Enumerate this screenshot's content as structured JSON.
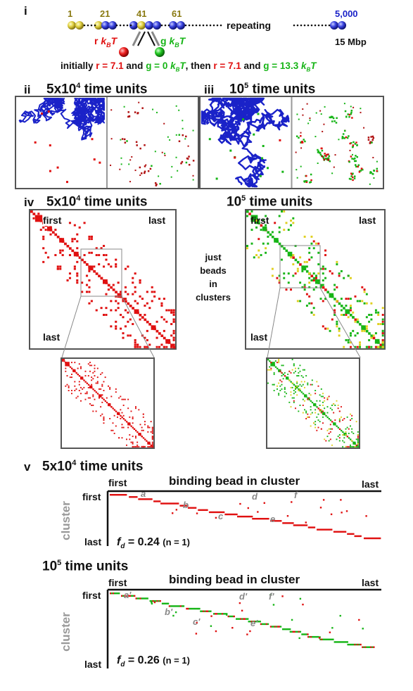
{
  "panel_i": {
    "label": "i",
    "bead_numbers": [
      "1",
      "21",
      "41",
      "61"
    ],
    "last_bead": "5,000",
    "repeating": "repeating",
    "mbp": "15 Mbp",
    "r_label": "r",
    "g_label": "g",
    "kbt": "k",
    "kbt_sub": "B",
    "kbt_T": "T",
    "init_prefix": "initially ",
    "init_r": "r = 7.1",
    "init_and": " and ",
    "init_g": "g = 0 ",
    "init_then": ", then ",
    "init_r2": "r = 7.1",
    "init_and2": " and ",
    "init_g2": "g = 13.3 "
  },
  "panel_ii": {
    "label": "ii",
    "title_a": "5x10",
    "title_sup": "4",
    "title_b": " time units"
  },
  "panel_iii": {
    "label": "iii",
    "title_a": "10",
    "title_sup": "5",
    "title_b": " time units"
  },
  "panel_iv": {
    "label": "iv",
    "left_title_a": "5x10",
    "left_title_sup": "4",
    "left_title_b": " time units",
    "right_title_a": "10",
    "right_title_sup": "5",
    "right_title_b": " time units",
    "first": "first",
    "last": "last",
    "middle_note_1": "just",
    "middle_note_2": "beads",
    "middle_note_3": "in",
    "middle_note_4": "clusters"
  },
  "panel_v": {
    "label": "v",
    "top_title_a": "5x10",
    "top_title_sup": "4",
    "top_title_b": " time units",
    "bottom_title_a": "10",
    "bottom_title_sup": "5",
    "bottom_title_b": " time units",
    "x_title": "binding bead in cluster",
    "y_title": "cluster",
    "first": "first",
    "last": "last",
    "top_fd": "f",
    "top_fd_sub": "d",
    "top_fd_val": " = 0.24 ",
    "top_n": "(n = 1)",
    "bottom_fd": "f",
    "bottom_fd_sub": "d",
    "bottom_fd_val": " = 0.26 ",
    "bottom_n": "(n = 1)",
    "top_letters": [
      "a",
      "b",
      "c",
      "d",
      "e",
      "f"
    ],
    "bottom_letters": [
      "a'",
      "b'",
      "c'",
      "d'",
      "e'",
      "f'"
    ]
  },
  "colors": {
    "red": "#e01010",
    "green": "#17b517",
    "blue": "#1a22c8",
    "gold": "#c8b820",
    "frame": "#555555"
  }
}
